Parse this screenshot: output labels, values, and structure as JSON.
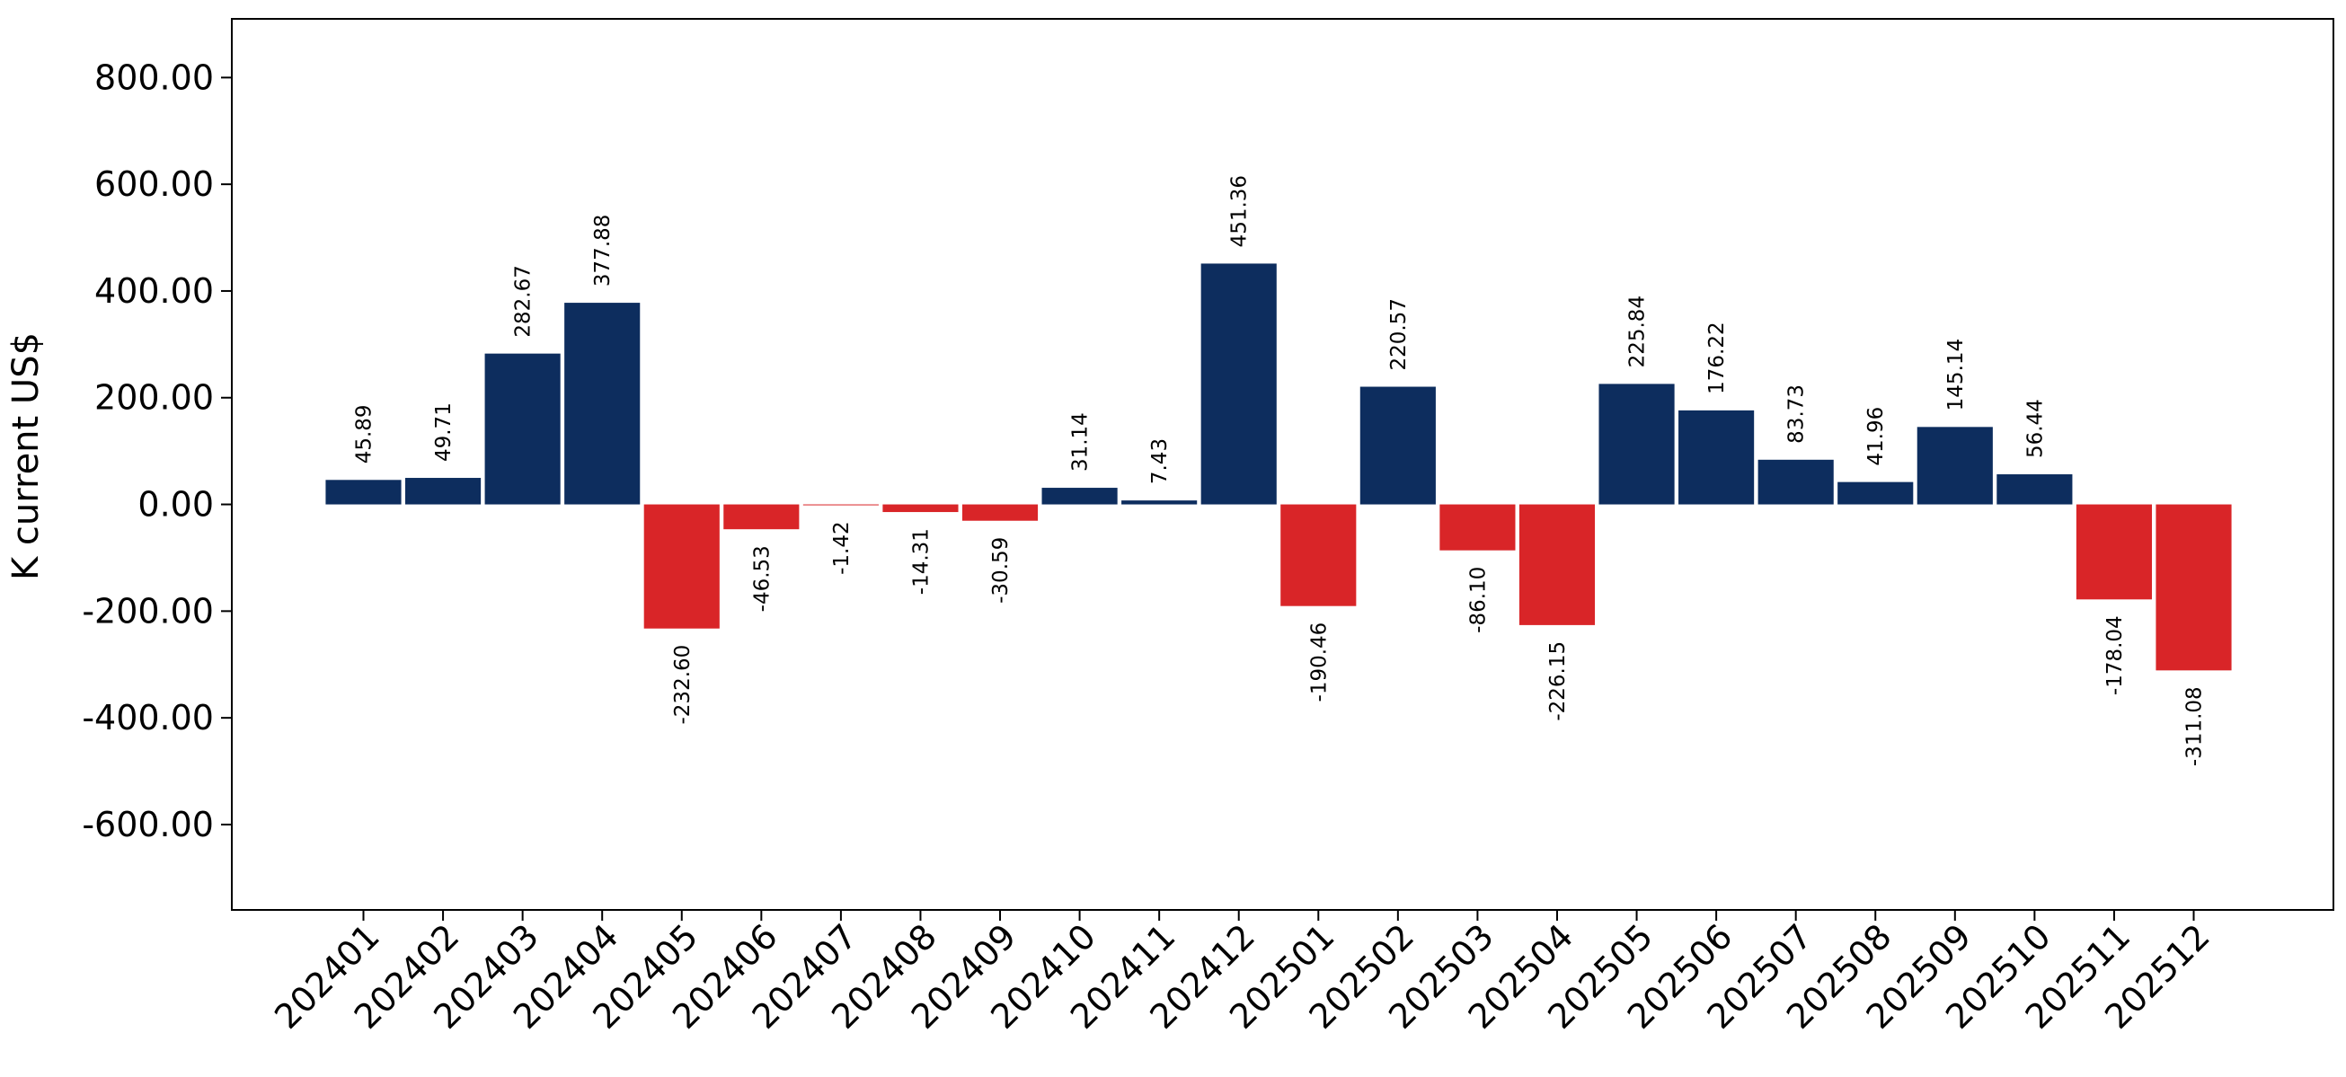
{
  "chart_data": {
    "type": "bar",
    "title": "",
    "xlabel": "",
    "ylabel": "K current US$",
    "ylim": [
      -760,
      910
    ],
    "yticks": [
      -600,
      -400,
      -200,
      0,
      200,
      400,
      600,
      800
    ],
    "ytick_labels": [
      "-600.00",
      "-400.00",
      "-200.00",
      "0.00",
      "200.00",
      "400.00",
      "600.00",
      "800.00"
    ],
    "grid": false,
    "legend": "none",
    "positive_color": "#0d2d5e",
    "negative_color": "#d92528",
    "categories": [
      "202401",
      "202402",
      "202403",
      "202404",
      "202405",
      "202406",
      "202407",
      "202408",
      "202409",
      "202410",
      "202411",
      "202412",
      "202501",
      "202502",
      "202503",
      "202504",
      "202505",
      "202506",
      "202507",
      "202508",
      "202509",
      "202510",
      "202511",
      "202512"
    ],
    "values": [
      45.89,
      49.71,
      282.67,
      377.88,
      -232.6,
      -46.53,
      -1.42,
      -14.31,
      -30.59,
      31.14,
      7.43,
      451.36,
      -190.46,
      220.57,
      -86.1,
      -226.15,
      225.84,
      176.22,
      83.73,
      41.96,
      145.14,
      56.44,
      -178.04,
      -311.08
    ],
    "value_labels": [
      "45.89",
      "49.71",
      "282.67",
      "377.88",
      "-232.60",
      "-46.53",
      "-1.42",
      "-14.31",
      "-30.59",
      "31.14",
      "7.43",
      "451.36",
      "-190.46",
      "220.57",
      "-86.10",
      "-226.15",
      "225.84",
      "176.22",
      "83.73",
      "41.96",
      "145.14",
      "56.44",
      "-178.04",
      "-311.08"
    ]
  }
}
